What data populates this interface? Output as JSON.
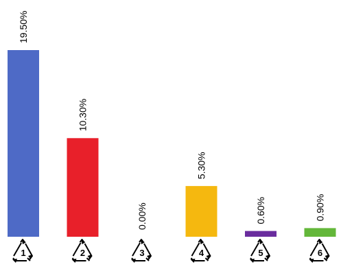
{
  "chart_data": {
    "type": "bar",
    "title": "",
    "xlabel": "",
    "ylabel": "",
    "categories": [
      "1",
      "2",
      "3",
      "4",
      "5",
      "6"
    ],
    "category_icons": [
      "recycle-icon",
      "recycle-icon",
      "recycle-icon",
      "recycle-icon",
      "recycle-icon",
      "recycle-icon"
    ],
    "values": [
      19.5,
      10.3,
      0.0,
      5.3,
      0.6,
      0.9
    ],
    "value_labels": [
      "19.50%",
      "10.30%",
      "0.00%",
      "5.30%",
      "0.60%",
      "0.90%"
    ],
    "colors": [
      "#4e6ac6",
      "#e8202a",
      "#9e9e9e",
      "#f5b80f",
      "#6a2d9e",
      "#63b73a"
    ],
    "ylim": [
      0,
      20
    ],
    "grid": false,
    "legend": "none",
    "label_orientation": "vertical"
  }
}
